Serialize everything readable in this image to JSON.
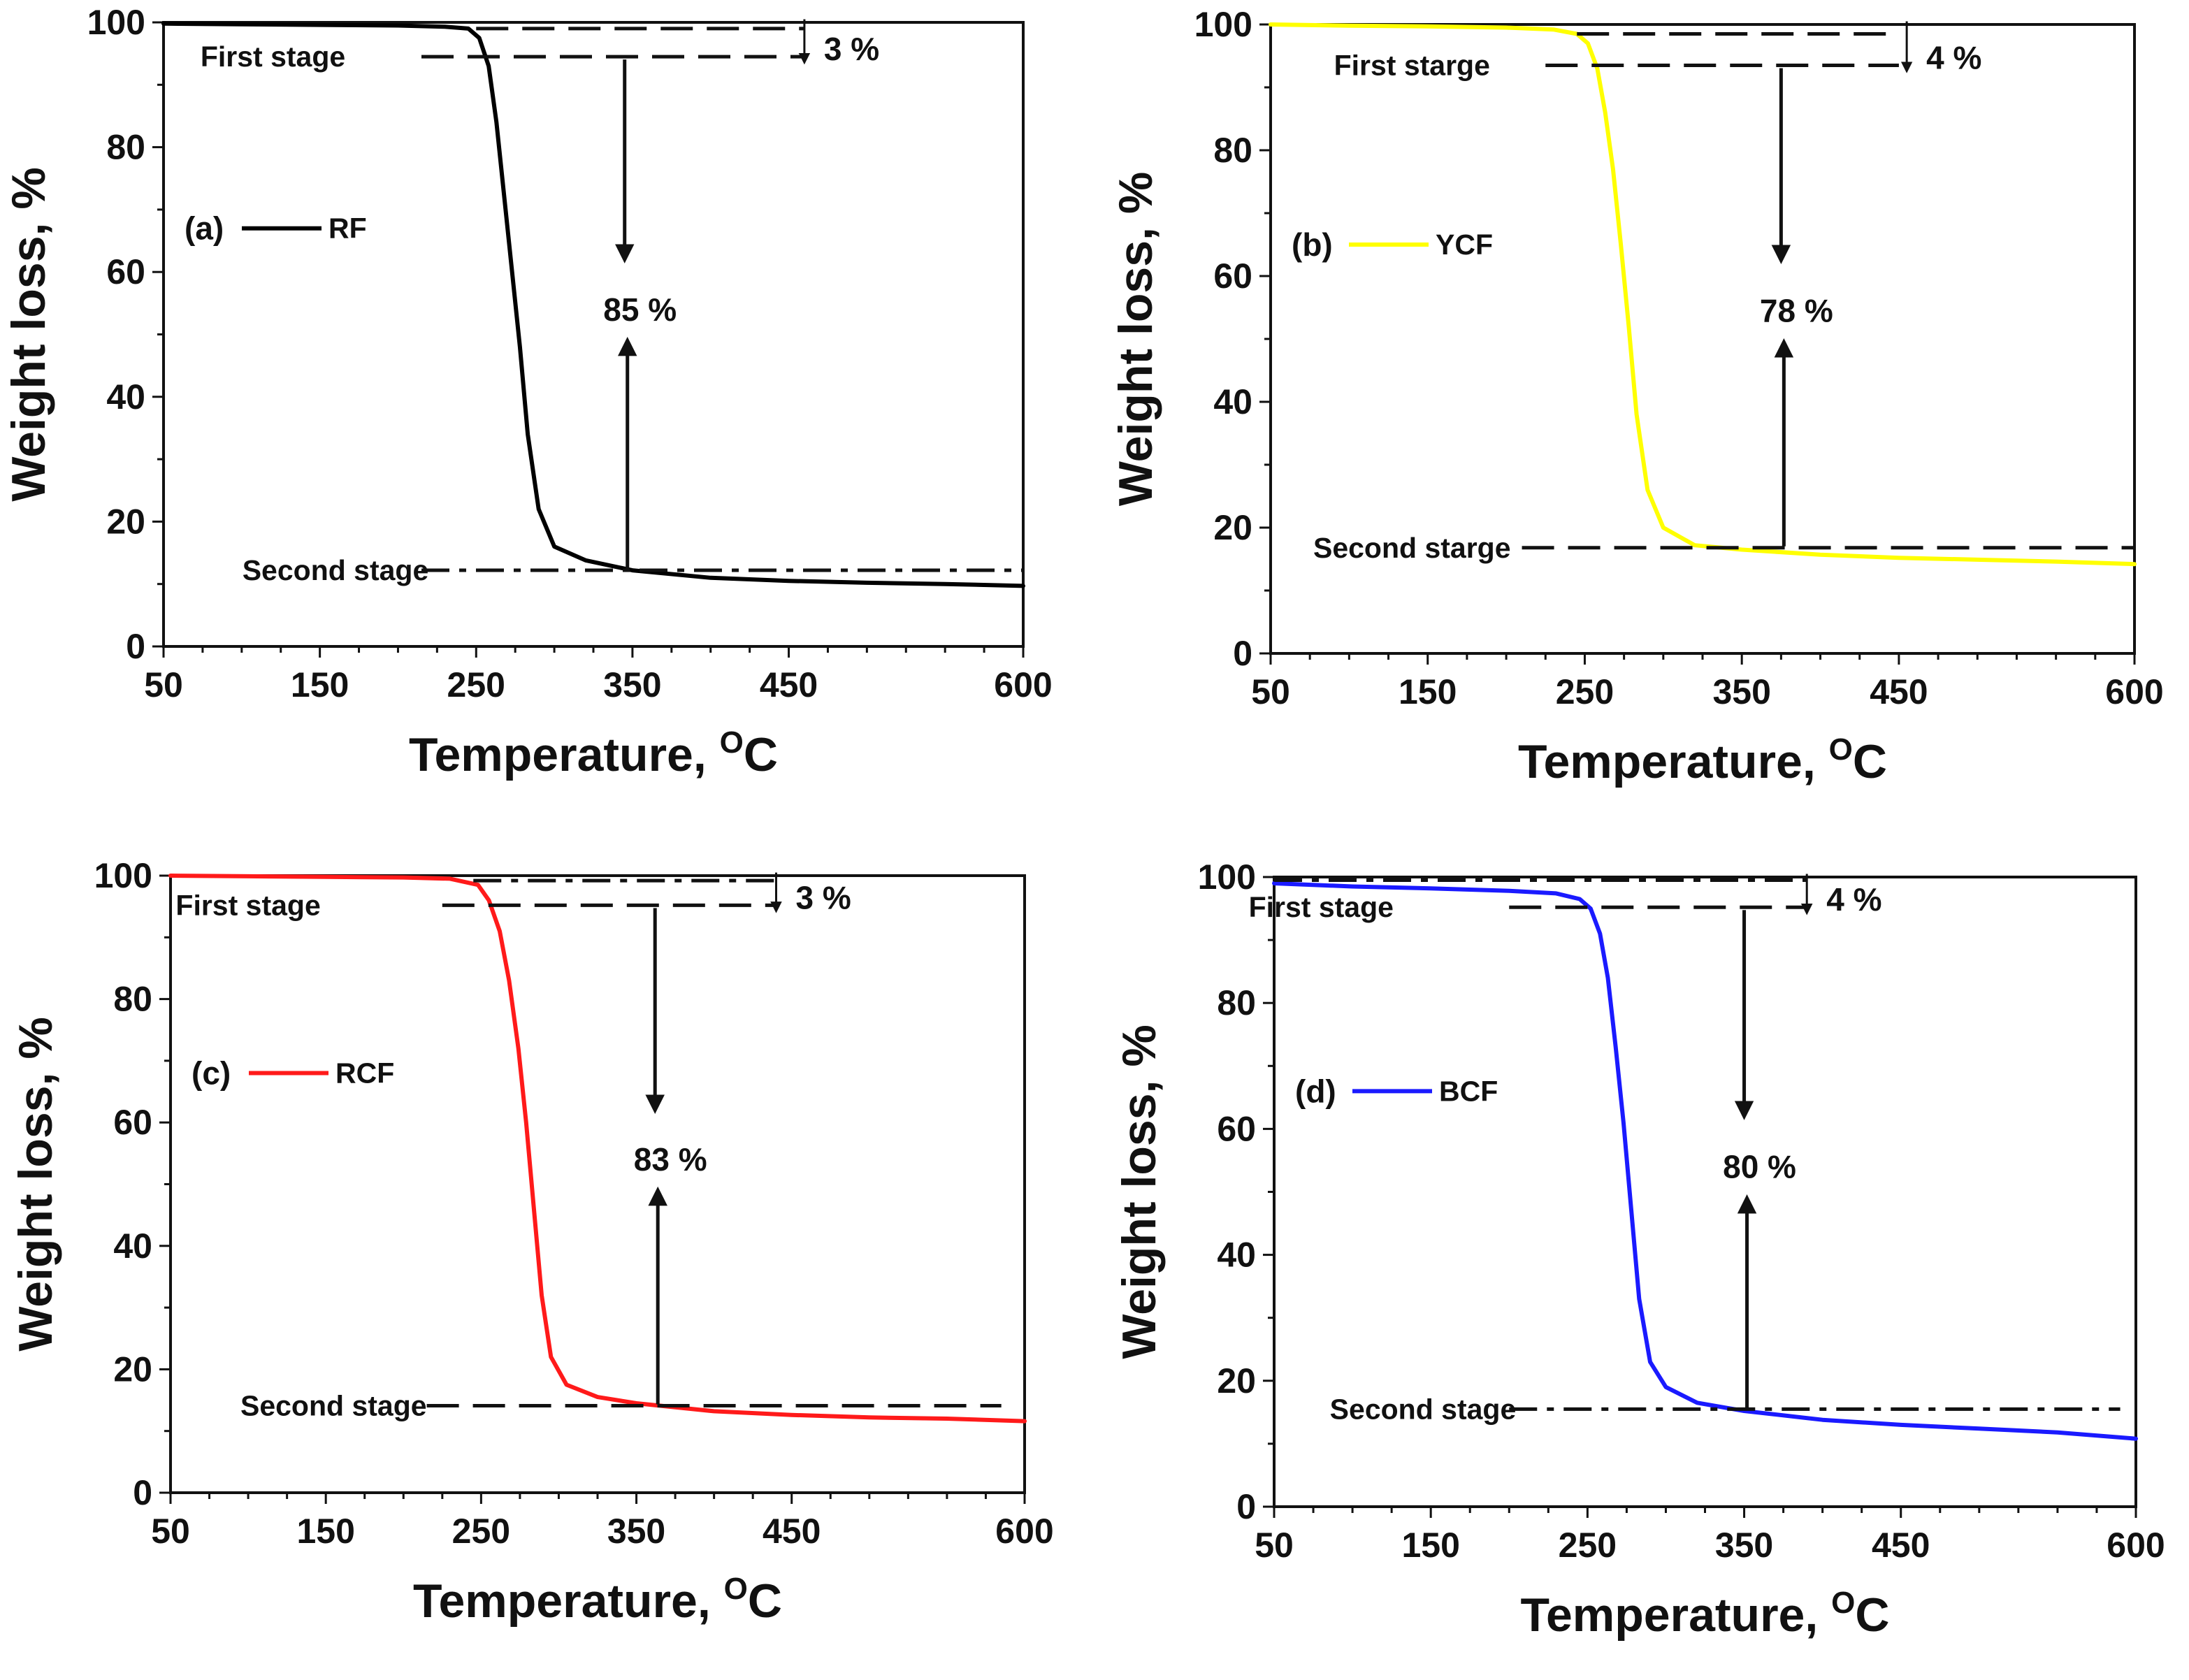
{
  "chart_data": [
    {
      "panel": "(a)",
      "type": "line",
      "legend": "RF",
      "legend_placement": "left",
      "series_color": "#000000",
      "xlabel": "Temperature, ",
      "xlabel_unit_sup": "O",
      "xlabel_unit": "C",
      "ylabel": "Weight loss, %",
      "xlim": [
        50,
        600
      ],
      "ylim": [
        0,
        100
      ],
      "x_ticks": [
        50,
        150,
        250,
        350,
        450,
        600
      ],
      "y_ticks": [
        0,
        20,
        40,
        60,
        80,
        100
      ],
      "x": [
        50,
        100,
        150,
        200,
        230,
        245,
        252,
        258,
        263,
        268,
        273,
        278,
        283,
        290,
        300,
        320,
        350,
        400,
        450,
        500,
        550,
        600
      ],
      "y": [
        99.8,
        99.7,
        99.6,
        99.5,
        99.3,
        99.0,
        97.5,
        93,
        84,
        72,
        60,
        48,
        34,
        22,
        16,
        13.8,
        12.2,
        11.0,
        10.5,
        10.2,
        10.0,
        9.7
      ],
      "first_stage_label": "First stage",
      "second_stage_label": "Second stage",
      "first_stage_loss_label": "3 %",
      "main_loss_label": "85 %",
      "stage_line_1_y": 99,
      "stage_line_2_y": 94.5,
      "stage_line_3_y": 12.2,
      "stage_line_1_xrange": [
        250,
        460
      ],
      "stage_line_2_xrange": [
        215,
        460
      ],
      "stage_line_3_xrange": [
        215,
        600
      ],
      "stage_line_3_style": "dashdot",
      "first_arrow_x": 460,
      "main_arrow_x": 345,
      "main_label_y": 54
    },
    {
      "panel": "(b)",
      "type": "line",
      "legend": "YCF",
      "legend_placement": "left",
      "series_color": "#ffff00",
      "xlabel": "Temperature, ",
      "xlabel_unit_sup": "O",
      "xlabel_unit": "C",
      "ylabel": "Weight loss, %",
      "xlim": [
        50,
        600
      ],
      "ylim": [
        0,
        100
      ],
      "x_ticks": [
        50,
        150,
        250,
        350,
        450,
        600
      ],
      "y_ticks": [
        0,
        20,
        40,
        60,
        80,
        100
      ],
      "x": [
        50,
        100,
        150,
        200,
        230,
        245,
        252,
        258,
        263,
        268,
        273,
        278,
        283,
        290,
        300,
        320,
        350,
        400,
        450,
        500,
        550,
        600
      ],
      "y": [
        100,
        99.8,
        99.7,
        99.5,
        99.2,
        98.5,
        97,
        93,
        86,
        77,
        65,
        52,
        38,
        26,
        20,
        17.2,
        16.5,
        15.7,
        15.2,
        14.9,
        14.6,
        14.2
      ],
      "first_stage_label": "First starge",
      "second_stage_label": "Second starge",
      "first_stage_loss_label": "4 %",
      "main_loss_label": "78 %",
      "stage_line_1_y": 98.5,
      "stage_line_2_y": 93.5,
      "stage_line_3_y": 16.8,
      "stage_line_1_xrange": [
        245,
        450
      ],
      "stage_line_2_xrange": [
        225,
        450
      ],
      "stage_line_3_xrange": [
        210,
        600
      ],
      "stage_line_3_style": "dash",
      "first_arrow_x": 455,
      "main_arrow_x": 375,
      "main_label_y": 54.5
    },
    {
      "panel": "(c)",
      "type": "line",
      "legend": "RCF",
      "legend_placement": "left",
      "series_color": "#ff1a1a",
      "xlabel": "Temperature, ",
      "xlabel_unit_sup": "O",
      "xlabel_unit": "C",
      "ylabel": "Weight loss, %",
      "xlim": [
        50,
        600
      ],
      "ylim": [
        0,
        100
      ],
      "x_ticks": [
        50,
        150,
        250,
        350,
        450,
        600
      ],
      "y_ticks": [
        0,
        20,
        40,
        60,
        80,
        100
      ],
      "x": [
        50,
        100,
        150,
        200,
        230,
        248,
        255,
        262,
        268,
        274,
        279,
        284,
        289,
        295,
        305,
        325,
        350,
        400,
        450,
        500,
        550,
        600
      ],
      "y": [
        100,
        99.9,
        99.8,
        99.7,
        99.5,
        98.5,
        96,
        91,
        83,
        72,
        60,
        46,
        32,
        22,
        17.5,
        15.5,
        14.5,
        13.2,
        12.6,
        12.2,
        12.0,
        11.6
      ],
      "first_stage_label": "First stage",
      "second_stage_label": "Second stage",
      "first_stage_loss_label": "3 %",
      "main_loss_label": "83 %",
      "stage_line_1_y": 99.2,
      "stage_line_2_y": 95.2,
      "stage_line_3_y": 14.1,
      "stage_line_1_xrange": [
        245,
        440
      ],
      "stage_line_2_xrange": [
        225,
        440
      ],
      "stage_line_3_xrange": [
        215,
        585
      ],
      "stage_line_3_style": "dash",
      "first_arrow_x": 440,
      "main_arrow_x": 362,
      "main_label_y": 54
    },
    {
      "panel": "(d)",
      "type": "line",
      "legend": "BCF",
      "legend_placement": "left",
      "series_color": "#1a1aff",
      "xlabel": "Temperature, ",
      "xlabel_unit_sup": "O",
      "xlabel_unit": "C",
      "ylabel": "Weight loss, %",
      "xlim": [
        50,
        600
      ],
      "ylim": [
        0,
        100
      ],
      "x_ticks": [
        50,
        150,
        250,
        350,
        450,
        600
      ],
      "y_ticks": [
        0,
        20,
        40,
        60,
        80,
        100
      ],
      "x": [
        50,
        100,
        150,
        200,
        230,
        245,
        252,
        258,
        263,
        268,
        273,
        278,
        283,
        290,
        300,
        320,
        350,
        400,
        450,
        500,
        550,
        600
      ],
      "y": [
        99,
        98.5,
        98.2,
        97.8,
        97.4,
        96.5,
        95,
        91,
        84,
        73,
        61,
        47,
        33,
        23,
        19,
        16.5,
        15.2,
        13.8,
        13.0,
        12.4,
        11.8,
        10.8
      ],
      "first_stage_label": "First stage",
      "second_stage_label": "Second stage",
      "first_stage_loss_label": "4 %",
      "main_loss_label": "80 %",
      "stage_line_1_y": 99.5,
      "stage_line_2_y": 95.2,
      "stage_line_3_y": 15.5,
      "stage_line_1_xrange": [
        50,
        390
      ],
      "stage_line_2_xrange": [
        200,
        390
      ],
      "stage_line_3_xrange": [
        200,
        590
      ],
      "stage_line_3_style": "dashdot",
      "first_arrow_x": 390,
      "main_arrow_x": 350,
      "main_label_y": 54
    }
  ]
}
